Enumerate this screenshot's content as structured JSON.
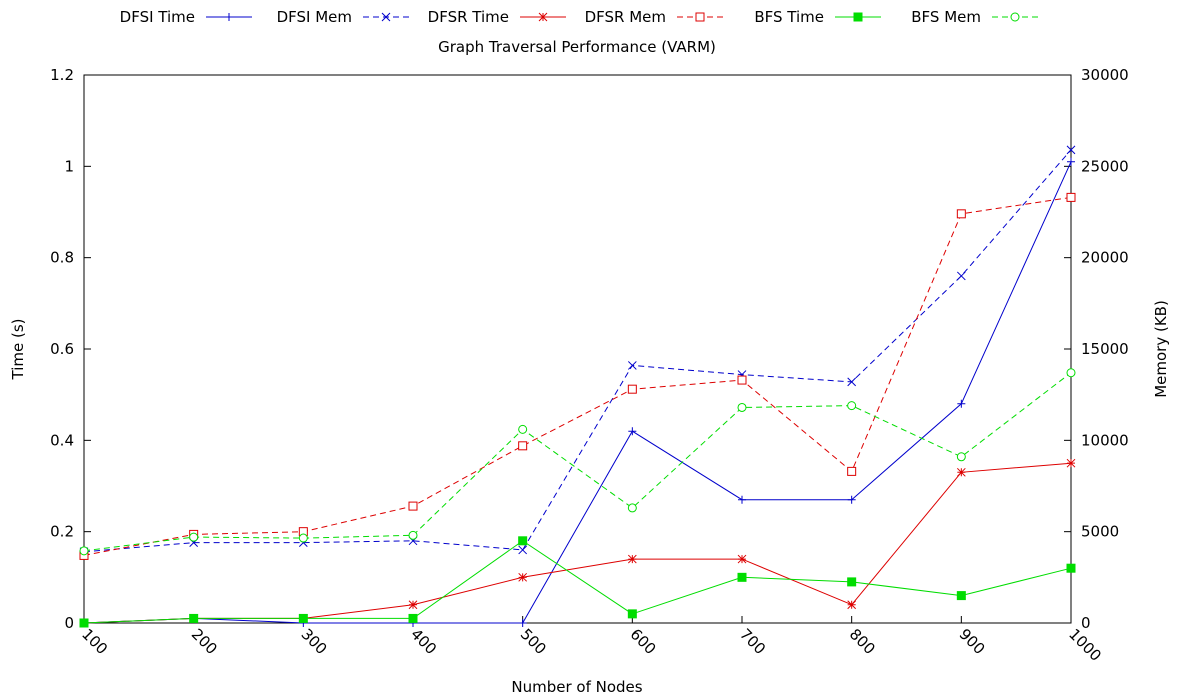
{
  "chart_data": {
    "type": "line",
    "title": "Graph Traversal Performance (VARM)",
    "xlabel": "Number of Nodes",
    "ylabel": "Time (s)",
    "y2label": "Memory (KB)",
    "x": [
      100,
      200,
      300,
      400,
      500,
      600,
      700,
      800,
      900,
      1000
    ],
    "xticks": [
      "100",
      "200",
      "300",
      "400",
      "500",
      "600",
      "700",
      "800",
      "900",
      "1000"
    ],
    "ylim": [
      0,
      1.2
    ],
    "yticks": [
      "0",
      "0.2",
      "0.4",
      "0.6",
      "0.8",
      "1",
      "1.2"
    ],
    "y2lim": [
      0,
      30000
    ],
    "y2ticks": [
      "0",
      "5000",
      "10000",
      "15000",
      "20000",
      "25000",
      "30000"
    ],
    "grid": false,
    "legend_position": "top",
    "series": [
      {
        "name": "DFSI Time",
        "axis": "y",
        "color": "#0000cc",
        "dashed": false,
        "marker": "plus",
        "values": [
          0,
          0.01,
          0,
          0,
          0,
          0.42,
          0.27,
          0.27,
          0.48,
          1.01
        ]
      },
      {
        "name": "DFSI Mem",
        "axis": "y2",
        "color": "#0000cc",
        "dashed": true,
        "marker": "x",
        "values": [
          3900,
          4400,
          4400,
          4500,
          4000,
          14100,
          13600,
          13200,
          19000,
          25900
        ]
      },
      {
        "name": "DFSR Time",
        "axis": "y",
        "color": "#dd0000",
        "dashed": false,
        "marker": "star",
        "values": [
          0,
          0.01,
          0.01,
          0.04,
          0.1,
          0.14,
          0.14,
          0.04,
          0.33,
          0.35
        ]
      },
      {
        "name": "DFSR Mem",
        "axis": "y2",
        "color": "#dd0000",
        "dashed": true,
        "marker": "square-open",
        "values": [
          3700,
          4850,
          5000,
          6400,
          9700,
          12800,
          13300,
          8300,
          22400,
          23300
        ]
      },
      {
        "name": "BFS Time",
        "axis": "y",
        "color": "#00dd00",
        "dashed": false,
        "marker": "square-filled",
        "values": [
          0,
          0.01,
          0.01,
          0.01,
          0.18,
          0.02,
          0.1,
          0.09,
          0.06,
          0.12
        ]
      },
      {
        "name": "BFS Mem",
        "axis": "y2",
        "color": "#00dd00",
        "dashed": true,
        "marker": "circle-open",
        "values": [
          3950,
          4700,
          4650,
          4800,
          10600,
          6300,
          11800,
          11900,
          9100,
          13700
        ]
      }
    ]
  }
}
